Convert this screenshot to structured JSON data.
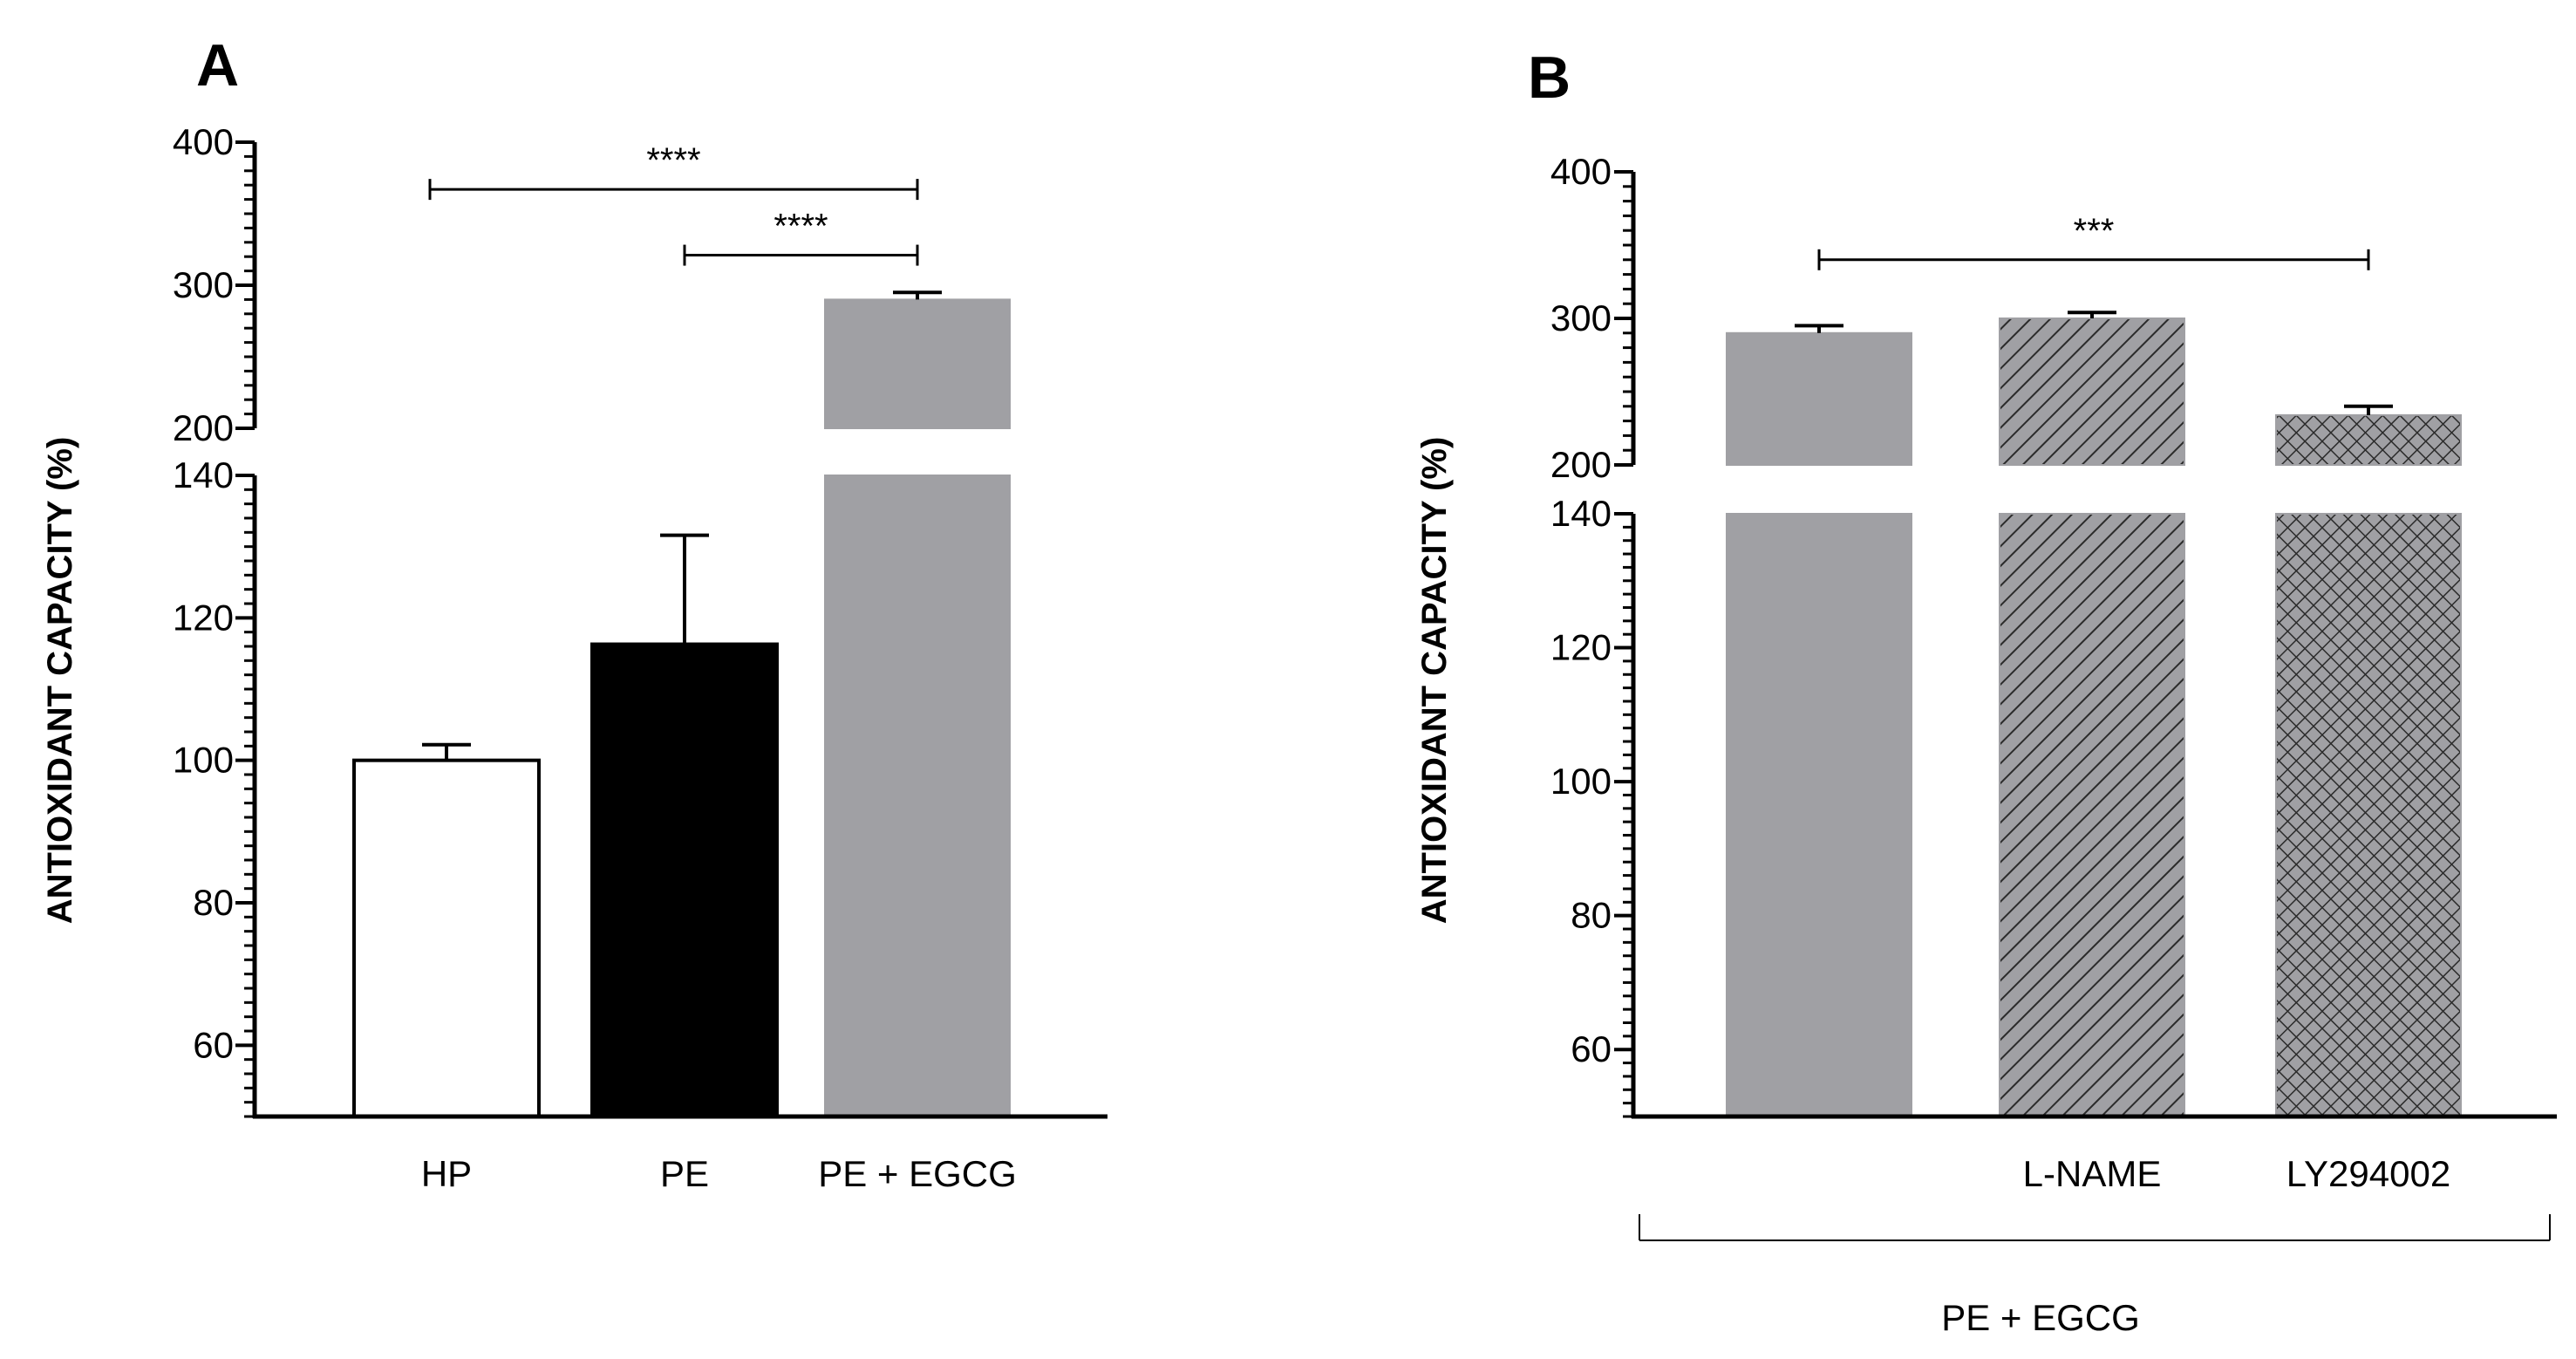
{
  "chart_data": [
    {
      "id": "A",
      "type": "bar",
      "panel_label": "A",
      "ylabel": "ANTIOXIDANT CAPACITY (%)",
      "xlabel": "",
      "y_axis_break": true,
      "lower_segment": {
        "ylim": [
          50,
          140
        ],
        "ticks": [
          60,
          80,
          100,
          120,
          140
        ]
      },
      "upper_segment": {
        "ylim": [
          200,
          400
        ],
        "ticks": [
          200,
          300,
          400
        ]
      },
      "categories": [
        "HP",
        "PE",
        "PE + EGCG"
      ],
      "values": [
        100,
        116.3,
        290
      ],
      "errors": [
        2.2,
        15.3,
        5
      ],
      "bar_styles": [
        {
          "fill": "#ffffff",
          "stroke": "#000000",
          "pattern": "none"
        },
        {
          "fill": "#000000",
          "stroke": "#000000",
          "pattern": "none"
        },
        {
          "fill": "#a0a0a4",
          "stroke": "#a0a0a4",
          "pattern": "none"
        }
      ],
      "significance": [
        {
          "from": 0,
          "to": 2,
          "label": "****",
          "y": 367
        },
        {
          "from": 1,
          "to": 2,
          "label": "****",
          "y": 321
        }
      ]
    },
    {
      "id": "B",
      "type": "bar",
      "panel_label": "B",
      "ylabel": "ANTIOXIDANT CAPACITY (%)",
      "xlabel": "",
      "y_axis_break": true,
      "lower_segment": {
        "ylim": [
          50,
          140
        ],
        "ticks": [
          60,
          80,
          100,
          120,
          140
        ]
      },
      "upper_segment": {
        "ylim": [
          200,
          400
        ],
        "ticks": [
          200,
          300,
          400
        ]
      },
      "categories": [
        "",
        "L-NAME",
        "LY294002"
      ],
      "values": [
        290,
        300,
        234
      ],
      "errors": [
        5,
        4,
        6
      ],
      "bar_styles": [
        {
          "fill": "#a0a0a4",
          "stroke": "#a0a0a4",
          "pattern": "none"
        },
        {
          "fill": "#a0a0a4",
          "stroke": "#a0a0a4",
          "pattern": "diagonal-hatch"
        },
        {
          "fill": "#a0a0a4",
          "stroke": "#a0a0a4",
          "pattern": "crosshatch"
        }
      ],
      "group_label": "PE + EGCG",
      "significance": [
        {
          "from": 0,
          "to": 2,
          "label": "***",
          "y": 340
        }
      ]
    }
  ]
}
